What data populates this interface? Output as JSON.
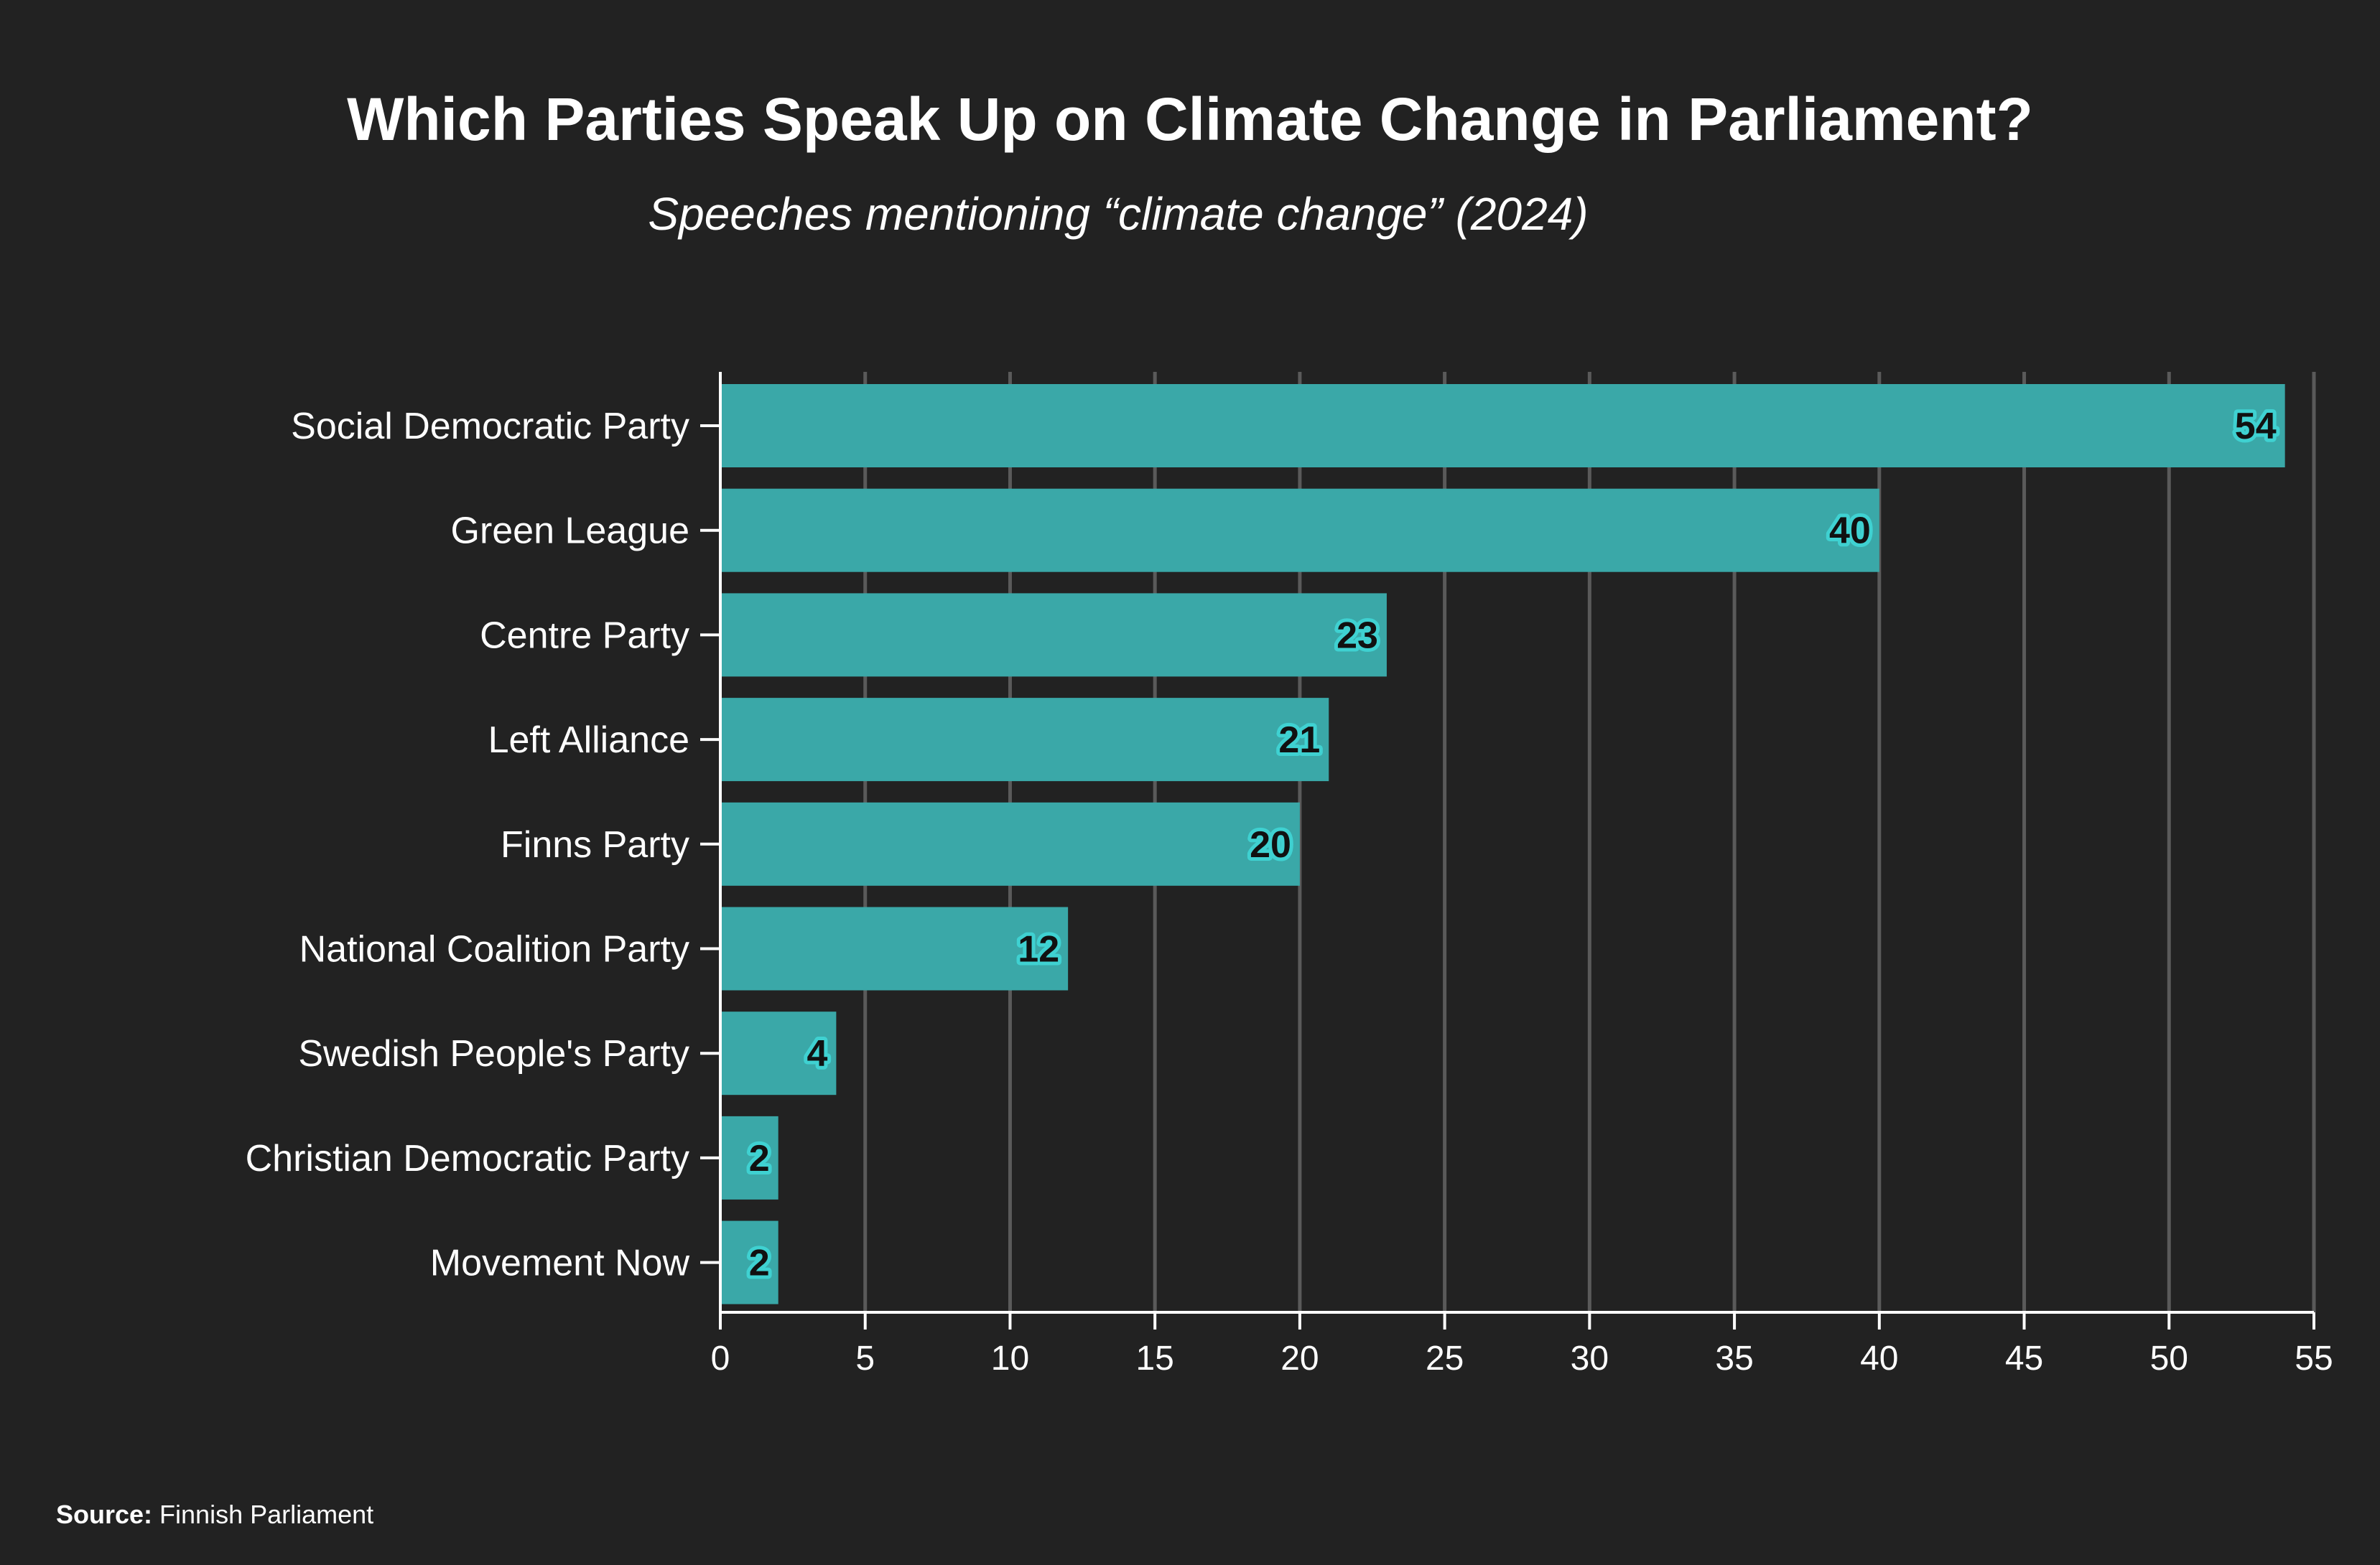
{
  "chart_data": {
    "type": "bar",
    "orientation": "horizontal",
    "title": "Which Parties Speak Up on Climate Change in Parliament?",
    "subtitle": "Speeches mentioning “climate change” (2024)",
    "categories": [
      "Social Democratic Party",
      "Green League",
      "Centre Party",
      "Left Alliance",
      "Finns Party",
      "National Coalition Party",
      "Swedish People's Party",
      "Christian Democratic Party",
      "Movement Now"
    ],
    "values": [
      54,
      40,
      23,
      21,
      20,
      12,
      4,
      2,
      2
    ],
    "xlabel": "",
    "ylabel": "",
    "xlim": [
      0,
      55
    ],
    "xticks": [
      0,
      5,
      10,
      15,
      20,
      25,
      30,
      35,
      40,
      45,
      50,
      55
    ],
    "grid": true,
    "legend": "none",
    "bar_color": "#3aa8a8",
    "label_halo_color": "#3fd1d1",
    "background_color": "#222222",
    "grid_color": "#5a5a5a"
  },
  "source": {
    "prefix": "Source:",
    "text": " Finnish Parliament"
  }
}
